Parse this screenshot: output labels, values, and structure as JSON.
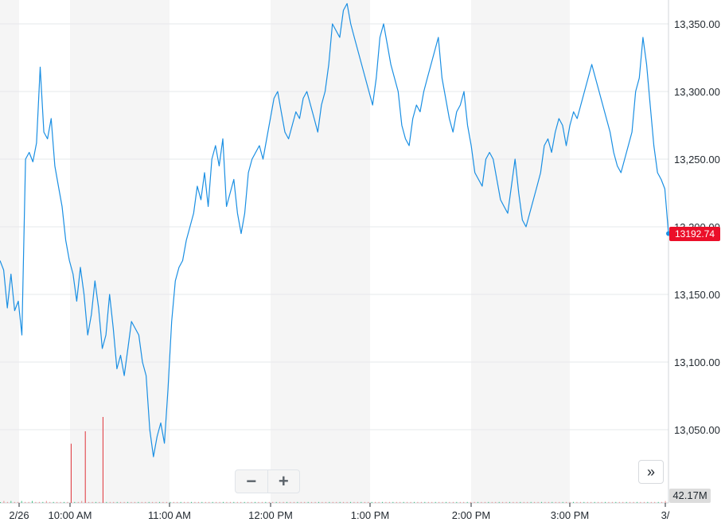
{
  "chart_data": {
    "type": "line",
    "title": "",
    "xlabel": "",
    "ylabel": "",
    "ylim": [
      13000,
      13370
    ],
    "y_ticks": [
      "13,350.00",
      "13,300.00",
      "13,250.00",
      "13,200.00",
      "13,150.00",
      "13,100.00",
      "13,050.00"
    ],
    "y_tick_values": [
      13350,
      13300,
      13250,
      13200,
      13150,
      13100,
      13050
    ],
    "x_ticks": [
      "2/26",
      "10:00 AM",
      "11:00 AM",
      "12:00 PM",
      "1:00 PM",
      "2:00 PM",
      "3:00 PM",
      "3/"
    ],
    "grid": true,
    "last_price_label": "13192.74",
    "volume_label": "42.17M",
    "colors": {
      "line": "#1a8fe3",
      "price_tag": "#eb0f29",
      "volume": "#e0333a",
      "band": "#f5f5f5"
    },
    "series": [
      {
        "values": [
          13175,
          13168,
          13140,
          13165,
          13138,
          13145,
          13120,
          13250,
          13255,
          13248,
          13262,
          13318,
          13270,
          13265,
          13280,
          13245,
          13230,
          13215,
          13190,
          13175,
          13165,
          13145,
          13170,
          13150,
          13120,
          13135,
          13160,
          13140,
          13110,
          13120,
          13150,
          13125,
          13095,
          13105,
          13090,
          13110,
          13130,
          13125,
          13120,
          13100,
          13090,
          13050,
          13030,
          13045,
          13055,
          13040,
          13080,
          13130,
          13160,
          13170,
          13175,
          13190,
          13200,
          13210,
          13230,
          13220,
          13240,
          13215,
          13250,
          13260,
          13245,
          13265,
          13215,
          13225,
          13235,
          13210,
          13195,
          13210,
          13240,
          13250,
          13255,
          13260,
          13250,
          13265,
          13280,
          13295,
          13300,
          13285,
          13270,
          13265,
          13275,
          13285,
          13280,
          13295,
          13300,
          13290,
          13280,
          13270,
          13290,
          13300,
          13320,
          13350,
          13345,
          13340,
          13360,
          13365,
          13350,
          13340,
          13330,
          13320,
          13310,
          13300,
          13290,
          13310,
          13340,
          13350,
          13335,
          13320,
          13310,
          13300,
          13275,
          13265,
          13260,
          13280,
          13290,
          13285,
          13300,
          13310,
          13320,
          13330,
          13340,
          13310,
          13295,
          13280,
          13270,
          13285,
          13290,
          13300,
          13275,
          13260,
          13240,
          13235,
          13230,
          13250,
          13255,
          13250,
          13235,
          13220,
          13215,
          13210,
          13230,
          13250,
          13225,
          13205,
          13200,
          13210,
          13220,
          13230,
          13240,
          13260,
          13265,
          13255,
          13270,
          13280,
          13275,
          13260,
          13275,
          13285,
          13280,
          13290,
          13300,
          13310,
          13320,
          13310,
          13300,
          13290,
          13280,
          13270,
          13255,
          13245,
          13240,
          13250,
          13260,
          13270,
          13300,
          13310,
          13340,
          13320,
          13290,
          13260,
          13240,
          13235,
          13228,
          13195
        ]
      }
    ],
    "volume": [
      0,
      2,
      1,
      2,
      1,
      1,
      2,
      1,
      1,
      2,
      1,
      1,
      1,
      2,
      1,
      1,
      1,
      1,
      1,
      1,
      62,
      1,
      1,
      2,
      75,
      1,
      1,
      1,
      1,
      90,
      1,
      1,
      1,
      1,
      1,
      1,
      1,
      1,
      1,
      1,
      1,
      1,
      1,
      1,
      1,
      1,
      1,
      1,
      1,
      1,
      1,
      1,
      1,
      1,
      1,
      1,
      1,
      1,
      1,
      1,
      1,
      1,
      1,
      1,
      1,
      1,
      1,
      1,
      1,
      1,
      1,
      1,
      1,
      1,
      1,
      1,
      1,
      1,
      1,
      1,
      1,
      1,
      1,
      1,
      1,
      1,
      1,
      1,
      1,
      1,
      1,
      1,
      1,
      1,
      1,
      1,
      1,
      1,
      1,
      1,
      1,
      1,
      1,
      1,
      1,
      1,
      1,
      1,
      1,
      1,
      1,
      1,
      1,
      1,
      1,
      1,
      1,
      1,
      1,
      1,
      1,
      1,
      1,
      1,
      1,
      1,
      1,
      1,
      1,
      1,
      1,
      1,
      1,
      1,
      1,
      1,
      1,
      1,
      1,
      1,
      1,
      1,
      1,
      1,
      1,
      1,
      1,
      1,
      1,
      1,
      1,
      1,
      1,
      1,
      1,
      1,
      1,
      1,
      1,
      1,
      1,
      1,
      1,
      1,
      1,
      1,
      1,
      1,
      1,
      1,
      1,
      1,
      1,
      1,
      1,
      1,
      1,
      1,
      1,
      1,
      1,
      1,
      1,
      1,
      1,
      1,
      1,
      1,
      2
    ]
  },
  "controls": {
    "zoom_out": "−",
    "zoom_in": "+",
    "expand": "»",
    "zoom_out_icon": "minus-icon",
    "zoom_in_icon": "plus-icon",
    "expand_icon": "double-chevron-right-icon"
  }
}
